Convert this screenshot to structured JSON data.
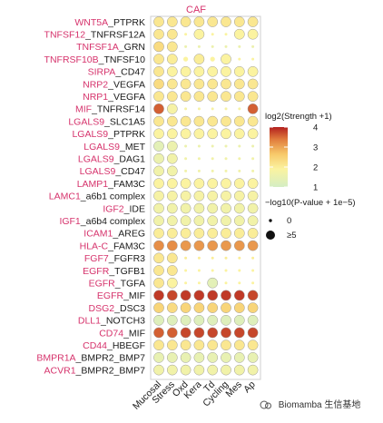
{
  "chart_data": {
    "type": "bubble_heatmap",
    "title": "CAF",
    "columns": [
      "Mucosal",
      "Stress",
      "Oxd",
      "Kera",
      "Td",
      "Cycling",
      "Mes",
      "Ap"
    ],
    "rows": [
      {
        "ligand": "WNT5A",
        "receptor": "PTPRK"
      },
      {
        "ligand": "TNFSF12",
        "receptor": "TNFRSF12A"
      },
      {
        "ligand": "TNFSF1A",
        "receptor": "GRN"
      },
      {
        "ligand": "TNFRSF10B",
        "receptor": "TNFSF10"
      },
      {
        "ligand": "SIRPA",
        "receptor": "CD47"
      },
      {
        "ligand": "NRP2",
        "receptor": "VEGFA"
      },
      {
        "ligand": "NRP1",
        "receptor": "VEGFA"
      },
      {
        "ligand": "MIF",
        "receptor": "TNFRSF14"
      },
      {
        "ligand": "LGALS9",
        "receptor": "SLC1A5"
      },
      {
        "ligand": "LGALS9",
        "receptor": "PTPRK"
      },
      {
        "ligand": "LGALS9",
        "receptor": "MET"
      },
      {
        "ligand": "LGALS9",
        "receptor": "DAG1"
      },
      {
        "ligand": "LGALS9",
        "receptor": "CD47"
      },
      {
        "ligand": "LAMP1",
        "receptor": "FAM3C"
      },
      {
        "ligand": "LAMC1",
        "receptor": "a6b1 complex"
      },
      {
        "ligand": "IGF2",
        "receptor": "IDE"
      },
      {
        "ligand": "IGF1",
        "receptor": "a6b4 complex"
      },
      {
        "ligand": "ICAM1",
        "receptor": "AREG"
      },
      {
        "ligand": "HLA-C",
        "receptor": "FAM3C"
      },
      {
        "ligand": "FGF7",
        "receptor": "FGFR3"
      },
      {
        "ligand": "EGFR",
        "receptor": "TGFB1"
      },
      {
        "ligand": "EGFR",
        "receptor": "TGFA"
      },
      {
        "ligand": "EGFR",
        "receptor": "MIF"
      },
      {
        "ligand": "DSG2",
        "receptor": "DSC3"
      },
      {
        "ligand": "DLL1",
        "receptor": "NOTCH3"
      },
      {
        "ligand": "CD74",
        "receptor": "MIF"
      },
      {
        "ligand": "CD44",
        "receptor": "HBEGF"
      },
      {
        "ligand": "BMPR1A",
        "receptor": "BMPR2_BMP7"
      },
      {
        "ligand": "ACVR1",
        "receptor": "BMPR2_BMP7"
      }
    ],
    "strength": [
      [
        2.0,
        2.0,
        2.0,
        2.0,
        2.0,
        2.0,
        2.0,
        2.0
      ],
      [
        2.0,
        2.0,
        1.8,
        1.8,
        1.8,
        1.8,
        1.8,
        1.8
      ],
      [
        2.2,
        2.0,
        1.5,
        1.5,
        1.5,
        1.5,
        1.5,
        1.5
      ],
      [
        2.0,
        1.9,
        1.8,
        1.9,
        1.8,
        1.8,
        1.8,
        1.8
      ],
      [
        2.0,
        1.8,
        1.8,
        1.8,
        1.8,
        1.8,
        1.8,
        1.8
      ],
      [
        2.2,
        2.0,
        2.0,
        2.0,
        2.0,
        2.0,
        2.0,
        2.0
      ],
      [
        2.0,
        2.0,
        2.0,
        2.0,
        2.0,
        2.0,
        2.0,
        2.0
      ],
      [
        3.5,
        1.7,
        1.7,
        1.7,
        1.7,
        1.7,
        1.7,
        3.5
      ],
      [
        2.0,
        2.0,
        2.0,
        2.0,
        2.0,
        2.0,
        2.0,
        2.0
      ],
      [
        1.8,
        1.8,
        1.8,
        1.8,
        1.8,
        1.8,
        1.8,
        1.8
      ],
      [
        1.3,
        1.5,
        1.5,
        1.5,
        1.5,
        1.5,
        1.5,
        1.5
      ],
      [
        1.5,
        1.6,
        1.6,
        1.6,
        1.6,
        1.6,
        1.6,
        1.6
      ],
      [
        1.6,
        1.6,
        1.6,
        1.6,
        1.6,
        1.6,
        1.6,
        1.6
      ],
      [
        1.8,
        1.8,
        1.8,
        1.8,
        1.8,
        1.8,
        1.8,
        1.8
      ],
      [
        1.7,
        1.7,
        1.7,
        1.7,
        1.7,
        1.7,
        1.7,
        1.7
      ],
      [
        1.6,
        1.6,
        1.6,
        1.6,
        1.6,
        1.6,
        1.6,
        1.6
      ],
      [
        1.6,
        1.6,
        1.6,
        1.6,
        1.6,
        1.6,
        1.6,
        1.6
      ],
      [
        1.9,
        1.9,
        1.9,
        1.9,
        1.9,
        1.9,
        1.9,
        1.9
      ],
      [
        3.1,
        3.1,
        3.0,
        3.0,
        3.0,
        3.0,
        3.0,
        3.0
      ],
      [
        2.0,
        2.0,
        1.9,
        1.9,
        1.9,
        1.9,
        1.9,
        1.9
      ],
      [
        2.0,
        2.0,
        1.8,
        1.8,
        1.8,
        1.8,
        1.8,
        1.8
      ],
      [
        2.0,
        1.8,
        1.8,
        1.8,
        1.3,
        1.8,
        1.8,
        1.8
      ],
      [
        3.8,
        3.7,
        3.8,
        3.8,
        3.8,
        3.8,
        3.8,
        3.7
      ],
      [
        2.3,
        2.2,
        2.3,
        2.3,
        2.3,
        2.3,
        2.3,
        2.3
      ],
      [
        1.2,
        1.2,
        1.2,
        1.2,
        1.2,
        1.2,
        1.2,
        1.2
      ],
      [
        3.5,
        3.5,
        3.7,
        3.7,
        3.7,
        3.7,
        3.7,
        3.7
      ],
      [
        2.0,
        2.0,
        2.0,
        2.0,
        2.0,
        2.0,
        2.0,
        2.0
      ],
      [
        1.4,
        1.4,
        1.4,
        1.4,
        1.4,
        1.4,
        1.4,
        1.4
      ],
      [
        1.6,
        1.6,
        1.6,
        1.6,
        1.6,
        1.6,
        1.6,
        1.6
      ]
    ],
    "significance": [
      [
        5,
        5,
        5,
        5,
        5,
        5,
        5,
        5
      ],
      [
        5,
        5,
        0,
        5,
        0,
        0,
        5,
        5
      ],
      [
        5,
        5,
        0,
        0,
        0,
        0,
        0,
        0
      ],
      [
        5,
        5,
        1,
        5,
        1,
        5,
        0,
        0
      ],
      [
        5,
        5,
        5,
        5,
        5,
        5,
        5,
        5
      ],
      [
        5,
        5,
        5,
        5,
        5,
        5,
        5,
        5
      ],
      [
        5,
        5,
        5,
        5,
        5,
        5,
        5,
        5
      ],
      [
        5,
        5,
        0,
        0,
        0,
        0,
        0,
        5
      ],
      [
        5,
        5,
        5,
        5,
        5,
        5,
        5,
        5
      ],
      [
        5,
        5,
        5,
        5,
        5,
        5,
        5,
        5
      ],
      [
        5,
        5,
        0,
        0,
        0,
        0,
        0,
        0
      ],
      [
        5,
        5,
        0,
        0,
        0,
        0,
        0,
        0
      ],
      [
        5,
        5,
        0,
        0,
        0,
        0,
        0,
        0
      ],
      [
        5,
        5,
        5,
        5,
        5,
        5,
        5,
        5
      ],
      [
        5,
        5,
        5,
        5,
        5,
        5,
        5,
        5
      ],
      [
        5,
        5,
        5,
        5,
        5,
        5,
        5,
        5
      ],
      [
        5,
        5,
        5,
        5,
        5,
        5,
        5,
        5
      ],
      [
        5,
        5,
        5,
        5,
        5,
        5,
        5,
        5
      ],
      [
        5,
        5,
        5,
        5,
        5,
        5,
        5,
        5
      ],
      [
        5,
        5,
        0,
        0,
        0,
        0,
        0,
        0
      ],
      [
        5,
        5,
        0,
        0,
        0,
        0,
        0,
        0
      ],
      [
        5,
        5,
        0,
        0,
        5,
        0,
        0,
        0
      ],
      [
        5,
        5,
        5,
        5,
        5,
        5,
        5,
        5
      ],
      [
        5,
        5,
        5,
        5,
        5,
        5,
        5,
        5
      ],
      [
        5,
        5,
        5,
        5,
        5,
        5,
        5,
        5
      ],
      [
        5,
        5,
        5,
        5,
        5,
        5,
        5,
        5
      ],
      [
        5,
        5,
        5,
        5,
        5,
        5,
        5,
        5
      ],
      [
        5,
        5,
        5,
        5,
        5,
        5,
        5,
        5
      ],
      [
        5,
        5,
        5,
        5,
        5,
        5,
        5,
        5
      ]
    ],
    "color_legend": {
      "title": "log2(Strength +1)",
      "ticks": [
        1,
        2,
        3,
        4
      ],
      "range": [
        1,
        4
      ]
    },
    "size_legend": {
      "title": "−log10(P-value + 1e−5)",
      "items": [
        "0",
        "≥5"
      ]
    },
    "colors": {
      "ligand": "#d6336c",
      "receptor": "#1a1a1a",
      "low": "#d4eec4",
      "mid": "#fbe87a",
      "high": "#b3201e"
    },
    "grid": false,
    "legend_position": "right"
  },
  "watermark": {
    "text": "Biomamba 生信基地"
  }
}
